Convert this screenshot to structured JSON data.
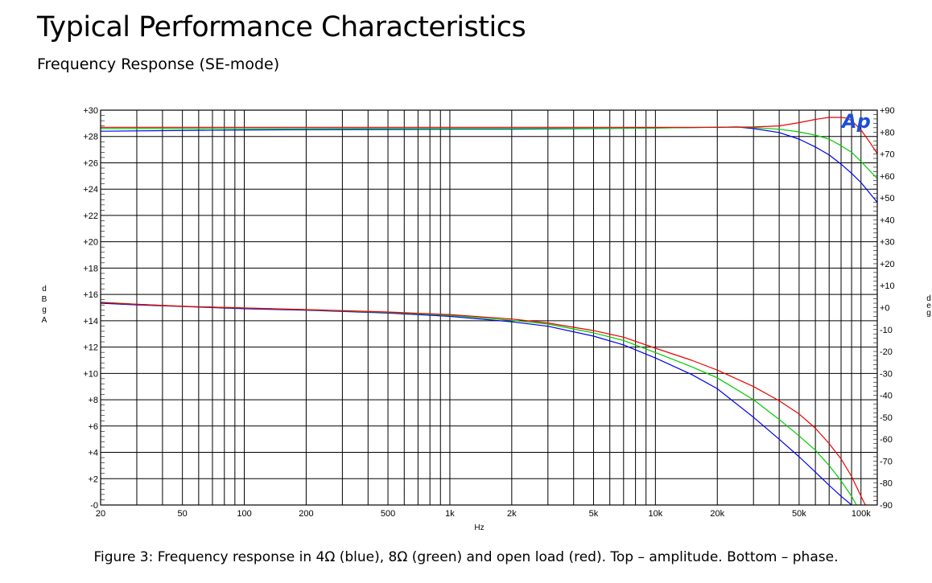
{
  "page": {
    "heading": "Typical Performance Characteristics",
    "subheading": "Frequency Response (SE-mode)",
    "caption": "Figure 3: Frequency response in 4Ω (blue), 8Ω (green) and open load (red). Top – amplitude. Bottom – phase.",
    "logo": "Ap"
  },
  "chart_data": {
    "type": "line",
    "xlabel": "Hz",
    "ylabel": "dBgA",
    "y2label": "deg",
    "x_scale": "log",
    "xlim": [
      20,
      120000
    ],
    "ylim": [
      0,
      30
    ],
    "y2lim": [
      -90,
      90
    ],
    "grid": true,
    "x_ticks": [
      {
        "value": 20,
        "label": "20"
      },
      {
        "value": 50,
        "label": "50"
      },
      {
        "value": 100,
        "label": "100"
      },
      {
        "value": 200,
        "label": "200"
      },
      {
        "value": 500,
        "label": "500"
      },
      {
        "value": 1000,
        "label": "1k"
      },
      {
        "value": 2000,
        "label": "2k"
      },
      {
        "value": 5000,
        "label": "5k"
      },
      {
        "value": 10000,
        "label": "10k"
      },
      {
        "value": 20000,
        "label": "20k"
      },
      {
        "value": 50000,
        "label": "50k"
      },
      {
        "value": 100000,
        "label": "100k"
      }
    ],
    "y_ticks": [
      {
        "value": 30,
        "label": "+30"
      },
      {
        "value": 28,
        "label": "+28"
      },
      {
        "value": 26,
        "label": "+26"
      },
      {
        "value": 24,
        "label": "+24"
      },
      {
        "value": 22,
        "label": "+22"
      },
      {
        "value": 20,
        "label": "+20"
      },
      {
        "value": 18,
        "label": "+18"
      },
      {
        "value": 16,
        "label": "+16"
      },
      {
        "value": 14,
        "label": "+14"
      },
      {
        "value": 12,
        "label": "+12"
      },
      {
        "value": 10,
        "label": "+10"
      },
      {
        "value": 8,
        "label": "+8"
      },
      {
        "value": 6,
        "label": "+6"
      },
      {
        "value": 4,
        "label": "+4"
      },
      {
        "value": 2,
        "label": "+2"
      },
      {
        "value": 0,
        "label": "-0"
      }
    ],
    "y2_ticks": [
      {
        "value": 90,
        "label": "+90"
      },
      {
        "value": 80,
        "label": "+80"
      },
      {
        "value": 70,
        "label": "+70"
      },
      {
        "value": 60,
        "label": "+60"
      },
      {
        "value": 50,
        "label": "+50"
      },
      {
        "value": 40,
        "label": "+40"
      },
      {
        "value": 30,
        "label": "+30"
      },
      {
        "value": 20,
        "label": "+20"
      },
      {
        "value": 10,
        "label": "+10"
      },
      {
        "value": 0,
        "label": "+0"
      },
      {
        "value": -10,
        "label": "-10"
      },
      {
        "value": -20,
        "label": "-20"
      },
      {
        "value": -30,
        "label": "-30"
      },
      {
        "value": -40,
        "label": "-40"
      },
      {
        "value": -50,
        "label": "-50"
      },
      {
        "value": -60,
        "label": "-60"
      },
      {
        "value": -70,
        "label": "-70"
      },
      {
        "value": -80,
        "label": "-80"
      },
      {
        "value": -90,
        "label": "-90"
      }
    ],
    "series": [
      {
        "color": "#0000ee",
        "axis": "y",
        "x": [
          20,
          100,
          1000,
          2000,
          5000,
          10000,
          20000,
          25000,
          30000,
          40000,
          50000,
          60000,
          70000,
          80000,
          90000,
          100000,
          120000
        ],
        "y": [
          28.4,
          28.5,
          28.55,
          28.55,
          28.6,
          28.65,
          28.7,
          28.72,
          28.6,
          28.3,
          27.8,
          27.2,
          26.6,
          25.9,
          25.2,
          24.5,
          23.0
        ]
      },
      {
        "color": "#00cc00",
        "axis": "y",
        "x": [
          20,
          100,
          1000,
          2000,
          5000,
          10000,
          20000,
          25000,
          30000,
          40000,
          50000,
          60000,
          70000,
          80000,
          90000,
          100000,
          120000
        ],
        "y": [
          28.6,
          28.6,
          28.6,
          28.6,
          28.62,
          28.65,
          28.7,
          28.72,
          28.68,
          28.55,
          28.35,
          28.1,
          27.8,
          27.3,
          26.8,
          26.1,
          24.8
        ]
      },
      {
        "color": "#ee0000",
        "axis": "y",
        "x": [
          20,
          100,
          1000,
          2000,
          5000,
          10000,
          20000,
          30000,
          40000,
          50000,
          60000,
          70000,
          80000,
          85000,
          90000,
          100000,
          110000,
          120000
        ],
        "y": [
          28.7,
          28.7,
          28.7,
          28.7,
          28.7,
          28.7,
          28.7,
          28.72,
          28.8,
          29.05,
          29.3,
          29.45,
          29.45,
          29.4,
          29.2,
          28.5,
          27.6,
          26.7
        ]
      },
      {
        "color": "#0000ee",
        "axis": "y2",
        "x": [
          20,
          30,
          50,
          100,
          200,
          500,
          1000,
          2000,
          3000,
          5000,
          7000,
          10000,
          15000,
          20000,
          30000,
          40000,
          50000,
          60000,
          70000,
          80000,
          90000
        ],
        "y": [
          2.0,
          1.2,
          0.5,
          -0.5,
          -1.2,
          -2.5,
          -4.0,
          -6.5,
          -8.5,
          -13.0,
          -17.0,
          -23.0,
          -30.5,
          -37.0,
          -50.0,
          -60.0,
          -68.0,
          -75.0,
          -81.0,
          -86.0,
          -90.0
        ]
      },
      {
        "color": "#00cc00",
        "axis": "y2",
        "x": [
          20,
          30,
          50,
          100,
          200,
          500,
          1000,
          2000,
          3000,
          5000,
          7000,
          10000,
          15000,
          20000,
          30000,
          40000,
          50000,
          60000,
          70000,
          80000,
          90000,
          95000
        ],
        "y": [
          2.5,
          1.5,
          0.6,
          -0.2,
          -1.0,
          -2.2,
          -3.5,
          -5.8,
          -7.5,
          -11.5,
          -15.0,
          -20.5,
          -27.0,
          -32.0,
          -42.0,
          -51.0,
          -58.5,
          -65.0,
          -72.0,
          -79.0,
          -86.0,
          -90.0
        ]
      },
      {
        "color": "#ee0000",
        "axis": "y2",
        "x": [
          20,
          30,
          50,
          100,
          200,
          500,
          1000,
          2000,
          3000,
          5000,
          7000,
          10000,
          15000,
          20000,
          30000,
          40000,
          50000,
          60000,
          70000,
          80000,
          90000,
          100000,
          105000
        ],
        "y": [
          2.3,
          1.5,
          0.6,
          -0.2,
          -0.9,
          -2.0,
          -3.2,
          -5.2,
          -7.0,
          -10.5,
          -13.5,
          -18.5,
          -24.0,
          -28.5,
          -36.0,
          -42.5,
          -48.5,
          -55.0,
          -62.0,
          -69.0,
          -77.0,
          -86.0,
          -90.0
        ]
      }
    ]
  }
}
